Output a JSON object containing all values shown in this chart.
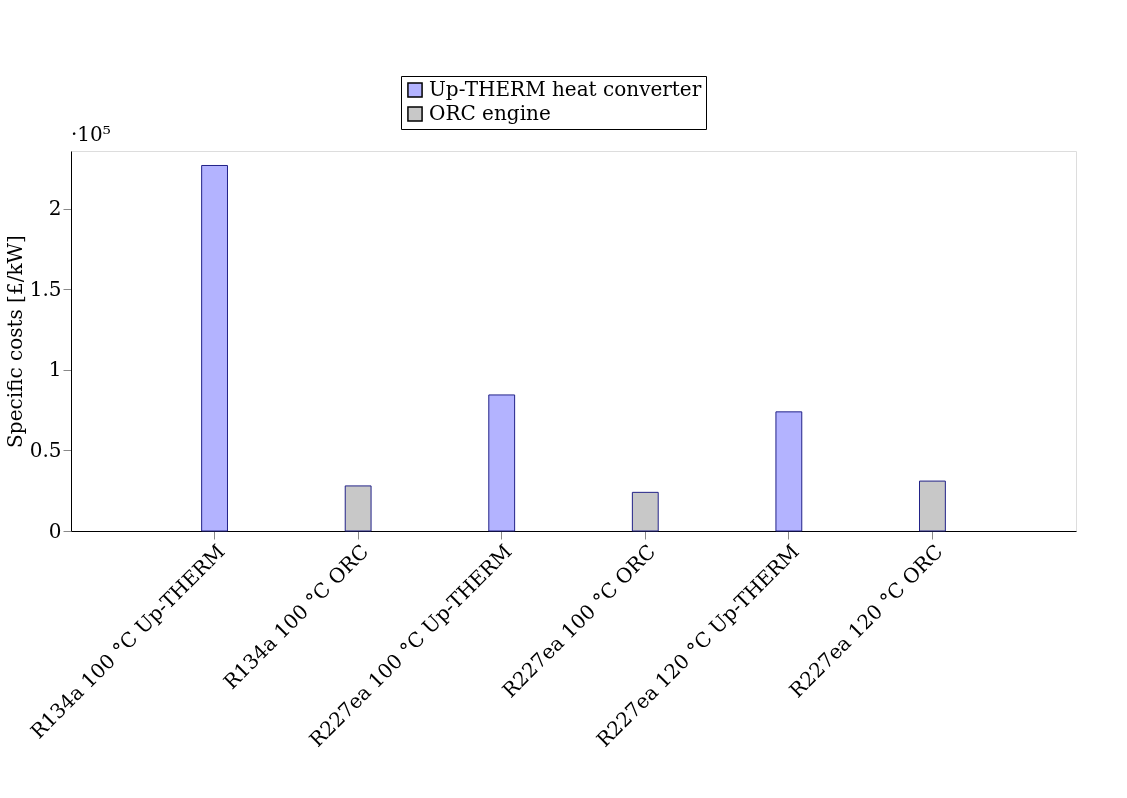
{
  "chart_data": {
    "type": "bar",
    "ylabel": "Specific costs [£/kW]",
    "categories": [
      "R134a 100 °C Up-THERM",
      "R134a 100 °C ORC",
      "R227ea 100 °C Up-THERM",
      "R227ea 100 °C ORC",
      "R227ea 120 °C Up-THERM",
      "R227ea 120 °C ORC"
    ],
    "series": [
      {
        "name": "Up-THERM heat converter",
        "color": "#b3b3ff",
        "values": [
          2.27,
          null,
          0.845,
          null,
          0.74,
          null
        ]
      },
      {
        "name": "ORC engine",
        "color": "#c8c8c8",
        "values": [
          null,
          0.28,
          null,
          0.24,
          null,
          0.31
        ]
      }
    ],
    "ylim": [
      0,
      2.36
    ],
    "yticks": [
      0,
      0.5,
      1,
      1.5,
      2
    ],
    "annotations": [
      "·10⁵"
    ],
    "legend": "top",
    "grid": false
  }
}
